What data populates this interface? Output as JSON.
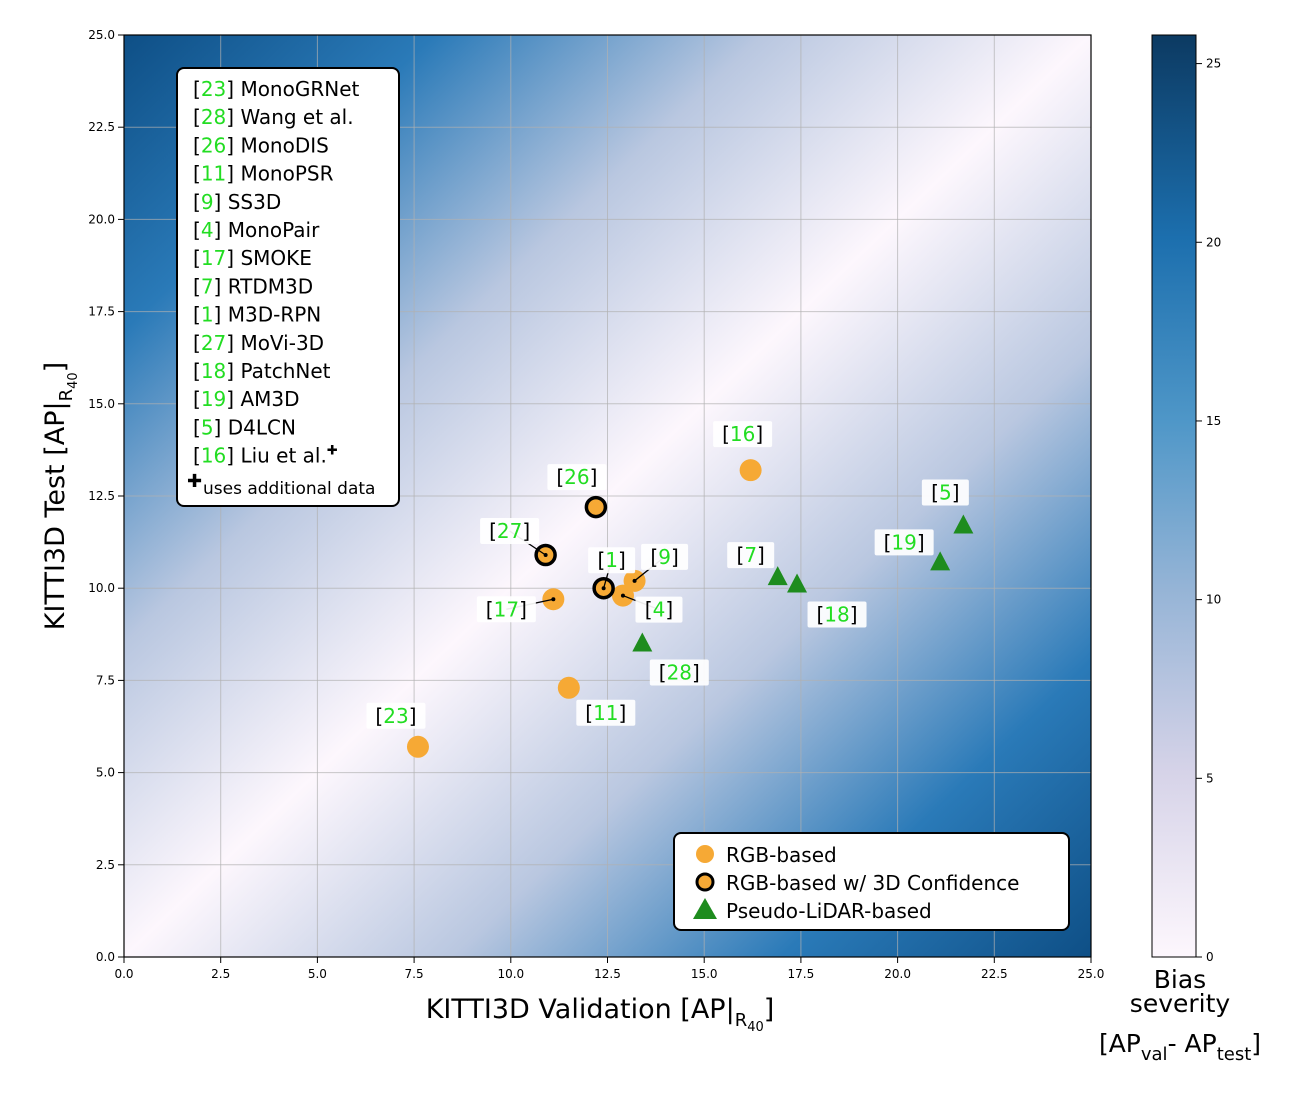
{
  "chart_data": {
    "type": "scatter",
    "xlabel_main": "KITTI3D Validation [AP|",
    "xlabel_sub": "R",
    "xlabel_subsub": "40",
    "xlabel_close": "]",
    "ylabel_main": "KITTI3D Test [AP|",
    "ylabel_sub": "R",
    "ylabel_subsub": "40",
    "ylabel_close": "]",
    "xlim": [
      0,
      25
    ],
    "ylim": [
      0,
      25
    ],
    "grid": true,
    "xticks": [
      "0.0",
      "2.5",
      "5.0",
      "7.5",
      "10.0",
      "12.5",
      "15.0",
      "17.5",
      "20.0",
      "22.5",
      "25.0"
    ],
    "yticks": [
      "0.0",
      "2.5",
      "5.0",
      "7.5",
      "10.0",
      "12.5",
      "15.0",
      "17.5",
      "20.0",
      "22.5",
      "25.0"
    ],
    "background": "absolute difference |x - y| (bias severity)",
    "colorbar": {
      "label_line1": "Bias",
      "label_line2": "severity",
      "formula": "[AP",
      "formula_sub1": "val",
      "formula_mid": "- AP",
      "formula_sub2": "test",
      "formula_end": "]",
      "range": [
        0,
        25.8
      ],
      "ticks": [
        "0",
        "5",
        "10",
        "15",
        "20",
        "25"
      ]
    },
    "colors": {
      "rgb": "#f6a935",
      "pseudo": "#1e8c1e",
      "ref_number": "#22dd22",
      "cmap_low": "#fdf7fd",
      "cmap_mid": "#5a9ecc",
      "cmap_high": "#0e3a61"
    },
    "series": [
      {
        "name": "RGB-based",
        "marker": "circle",
        "points": [
          {
            "ref": "23",
            "x": 7.6,
            "y": 5.7
          },
          {
            "ref": "11",
            "x": 11.5,
            "y": 7.3
          },
          {
            "ref": "17",
            "x": 11.1,
            "y": 9.7
          },
          {
            "ref": "4",
            "x": 12.9,
            "y": 9.8
          },
          {
            "ref": "9",
            "x": 13.2,
            "y": 10.2
          },
          {
            "ref": "16",
            "x": 16.2,
            "y": 13.2
          }
        ]
      },
      {
        "name": "RGB-based w/ 3D Confidence",
        "marker": "circle-outlined",
        "points": [
          {
            "ref": "27",
            "x": 10.9,
            "y": 10.9
          },
          {
            "ref": "1",
            "x": 12.4,
            "y": 10.0
          },
          {
            "ref": "26",
            "x": 12.2,
            "y": 12.2
          }
        ]
      },
      {
        "name": "Pseudo-LiDAR-based",
        "marker": "triangle",
        "points": [
          {
            "ref": "28",
            "x": 13.4,
            "y": 8.5
          },
          {
            "ref": "7",
            "x": 16.9,
            "y": 10.3
          },
          {
            "ref": "18",
            "x": 17.4,
            "y": 10.1
          },
          {
            "ref": "19",
            "x": 21.1,
            "y": 10.7
          },
          {
            "ref": "5",
            "x": 21.7,
            "y": 11.7
          }
        ]
      }
    ],
    "refs_legend": [
      {
        "ref": "23",
        "name": "MonoGRNet"
      },
      {
        "ref": "28",
        "name": "Wang et al."
      },
      {
        "ref": "26",
        "name": "MonoDIS"
      },
      {
        "ref": "11",
        "name": "MonoPSR"
      },
      {
        "ref": "9",
        "name": "SS3D"
      },
      {
        "ref": "4",
        "name": "MonoPair"
      },
      {
        "ref": "17",
        "name": "SMOKE"
      },
      {
        "ref": "7",
        "name": "RTDM3D"
      },
      {
        "ref": "1",
        "name": "M3D-RPN"
      },
      {
        "ref": "27",
        "name": "MoVi-3D"
      },
      {
        "ref": "18",
        "name": "PatchNet"
      },
      {
        "ref": "19",
        "name": "AM3D"
      },
      {
        "ref": "5",
        "name": "D4LCN"
      },
      {
        "ref": "16",
        "name": "Liu et al.",
        "extra_data": true
      }
    ],
    "refs_footnote": "uses additional data",
    "legend_position": "bottom-right",
    "refs_legend_position": "top-left"
  }
}
